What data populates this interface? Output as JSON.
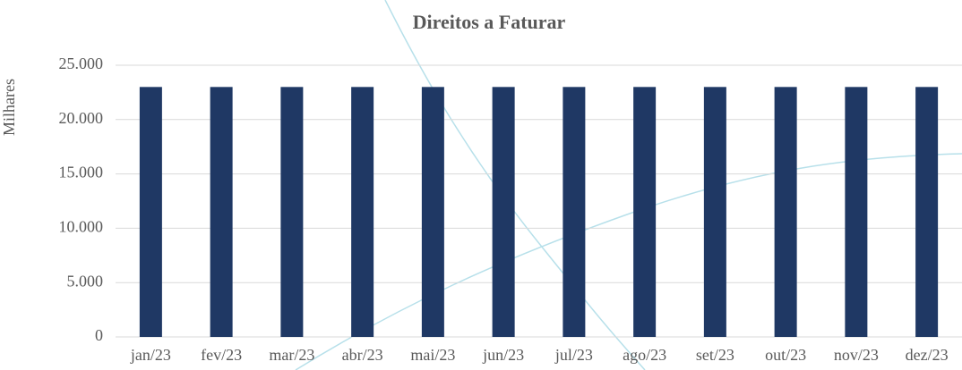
{
  "chart_data": {
    "type": "bar",
    "title": "Direitos a Faturar",
    "y_label": "Milhares",
    "categories": [
      "jan/23",
      "fev/23",
      "mar/23",
      "abr/23",
      "mai/23",
      "jun/23",
      "jul/23",
      "ago/23",
      "set/23",
      "out/23",
      "nov/23",
      "dez/23"
    ],
    "values": [
      23000,
      23000,
      23000,
      23000,
      23000,
      23000,
      23000,
      23000,
      23000,
      23000,
      23000,
      23000
    ],
    "color": "#1f3864",
    "ylim": [
      0,
      25000
    ],
    "yticks": [
      0,
      {
        "value": 5000,
        "label": "5.000"
      },
      {
        "value": 10000,
        "label": "10.000"
      },
      {
        "value": 15000,
        "label": "15.000"
      },
      {
        "value": 20000,
        "label": "20.000"
      },
      {
        "value": 25000,
        "label": "25.000"
      }
    ],
    "grid": true
  }
}
